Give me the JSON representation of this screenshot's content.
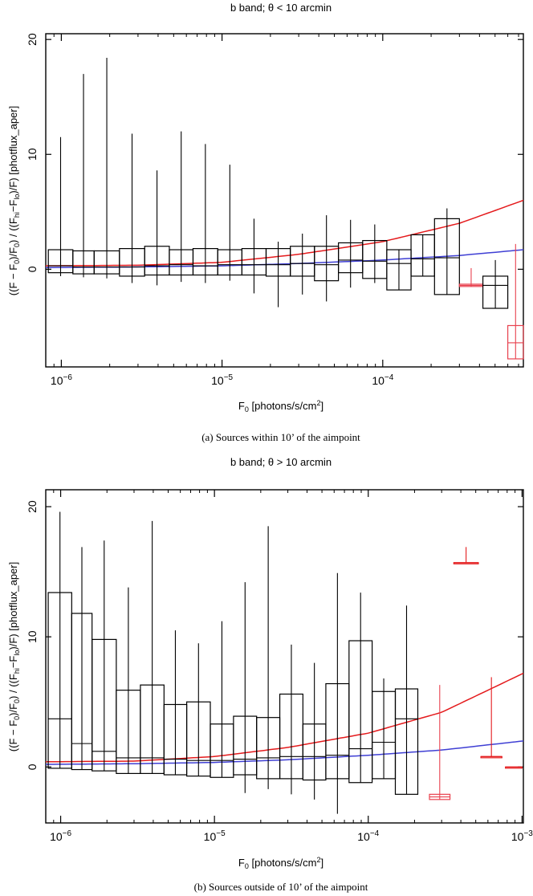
{
  "chart_data": [
    {
      "type": "boxplot",
      "title": "b band;  θ < 10 arcmin",
      "caption": "(a)  Sources within 10’ of the aimpoint",
      "xlabel_parts": [
        "F",
        "0",
        " [photons/s/cm",
        "2",
        "]"
      ],
      "ylabel_parts": [
        "((F − F",
        "0",
        ")/F",
        "0",
        ") / ((F",
        "hi",
        "−F",
        "lo",
        ")/F)  [photflux_aper]"
      ],
      "x_scale": "log",
      "x_ticks": [
        {
          "value": 1e-06,
          "label_base": "10",
          "label_exp": "−6"
        },
        {
          "value": 1e-05,
          "label_base": "10",
          "label_exp": "−5"
        },
        {
          "value": 0.0001,
          "label_base": "10",
          "label_exp": "−4"
        }
      ],
      "xlim": [
        8e-07,
        0.00075
      ],
      "y_ticks": [
        0,
        10,
        20
      ],
      "ylim": [
        -8.5,
        20.5
      ],
      "boxes": [
        {
          "x_lo": 8.3e-07,
          "x_hi": 1.18e-06,
          "q1": -0.3,
          "median": 0.3,
          "q3": 1.7,
          "whisker_lo": -0.6,
          "whisker_hi": 11.5,
          "color": "#000000"
        },
        {
          "x_lo": 1.18e-06,
          "x_hi": 1.6e-06,
          "q1": -0.4,
          "median": 0.2,
          "q3": 1.6,
          "whisker_lo": -0.7,
          "whisker_hi": 17.0,
          "color": "#000000"
        },
        {
          "x_lo": 1.6e-06,
          "x_hi": 2.3e-06,
          "q1": -0.4,
          "median": 0.2,
          "q3": 1.6,
          "whisker_lo": -0.8,
          "whisker_hi": 18.4,
          "color": "#000000"
        },
        {
          "x_lo": 2.3e-06,
          "x_hi": 3.3e-06,
          "q1": -0.6,
          "median": 0.2,
          "q3": 1.8,
          "whisker_lo": -1.2,
          "whisker_hi": 11.8,
          "color": "#000000"
        },
        {
          "x_lo": 3.3e-06,
          "x_hi": 4.7e-06,
          "q1": -0.5,
          "median": 0.3,
          "q3": 2.0,
          "whisker_lo": -1.4,
          "whisker_hi": 8.6,
          "color": "#000000"
        },
        {
          "x_lo": 4.7e-06,
          "x_hi": 6.6e-06,
          "q1": -0.5,
          "median": 0.4,
          "q3": 1.7,
          "whisker_lo": -1.1,
          "whisker_hi": 12.0,
          "color": "#000000"
        },
        {
          "x_lo": 6.6e-06,
          "x_hi": 9.4e-06,
          "q1": -0.5,
          "median": 0.3,
          "q3": 1.8,
          "whisker_lo": -1.2,
          "whisker_hi": 10.9,
          "color": "#000000"
        },
        {
          "x_lo": 9.4e-06,
          "x_hi": 1.33e-05,
          "q1": -0.5,
          "median": 0.4,
          "q3": 1.7,
          "whisker_lo": -1.0,
          "whisker_hi": 9.1,
          "color": "#000000"
        },
        {
          "x_lo": 1.33e-05,
          "x_hi": 1.88e-05,
          "q1": -0.5,
          "median": 0.4,
          "q3": 1.8,
          "whisker_lo": -2.1,
          "whisker_hi": 4.4,
          "color": "#000000"
        },
        {
          "x_lo": 1.88e-05,
          "x_hi": 2.66e-05,
          "q1": -0.6,
          "median": 0.4,
          "q3": 1.8,
          "whisker_lo": -3.3,
          "whisker_hi": 2.4,
          "color": "#000000"
        },
        {
          "x_lo": 2.66e-05,
          "x_hi": 3.76e-05,
          "q1": -0.6,
          "median": 0.5,
          "q3": 2.0,
          "whisker_lo": -2.2,
          "whisker_hi": 3.1,
          "color": "#000000"
        },
        {
          "x_lo": 3.76e-05,
          "x_hi": 5.3e-05,
          "q1": -1.0,
          "median": 0.4,
          "q3": 2.0,
          "whisker_lo": -2.8,
          "whisker_hi": 4.7,
          "color": "#000000"
        },
        {
          "x_lo": 5.3e-05,
          "x_hi": 7.5e-05,
          "q1": -0.3,
          "median": 0.8,
          "q3": 2.3,
          "whisker_lo": -1.6,
          "whisker_hi": 4.3,
          "color": "#000000"
        },
        {
          "x_lo": 7.5e-05,
          "x_hi": 0.000106,
          "q1": -0.8,
          "median": 0.7,
          "q3": 2.5,
          "whisker_lo": -1.2,
          "whisker_hi": 3.9,
          "color": "#000000"
        },
        {
          "x_lo": 0.000106,
          "x_hi": 0.00015,
          "q1": -1.8,
          "median": 0.5,
          "q3": 1.7,
          "whisker_lo": -1.8,
          "whisker_hi": 1.7,
          "color": "#000000"
        },
        {
          "x_lo": 0.00015,
          "x_hi": 0.00021,
          "q1": -0.6,
          "median": 0.9,
          "q3": 3.0,
          "whisker_lo": -0.6,
          "whisker_hi": 3.0,
          "color": "#000000"
        },
        {
          "x_lo": 0.00021,
          "x_hi": 0.0003,
          "q1": -2.2,
          "median": 1.0,
          "q3": 4.4,
          "whisker_lo": -2.2,
          "whisker_hi": 5.3,
          "color": "#000000"
        },
        {
          "x_lo": 0.0003,
          "x_hi": 0.00042,
          "q1": -1.5,
          "median": -1.4,
          "q3": -1.3,
          "whisker_lo": -1.5,
          "whisker_hi": 0.1,
          "color": "#e8414e"
        },
        {
          "x_lo": 0.00042,
          "x_hi": 0.0006,
          "q1": -3.4,
          "median": -1.4,
          "q3": -0.6,
          "whisker_lo": -3.4,
          "whisker_hi": 0.8,
          "color": "#000000"
        },
        {
          "x_lo": 0.0006,
          "x_hi": 0.00075,
          "q1": -7.8,
          "median": -6.4,
          "q3": -4.9,
          "whisker_lo": -7.8,
          "whisker_hi": 2.2,
          "color": "#e8414e"
        }
      ],
      "series": [
        {
          "color": "#e41a1c",
          "x": [
            8e-07,
            3e-06,
            1e-05,
            3e-05,
            0.0001,
            0.0003,
            0.00075
          ],
          "y": [
            0.3,
            0.35,
            0.6,
            1.3,
            2.4,
            4.0,
            6.0
          ]
        },
        {
          "color": "#3f3fd4",
          "x": [
            8e-07,
            3e-06,
            1e-05,
            3e-05,
            0.0001,
            0.0003,
            0.00075
          ],
          "y": [
            0.15,
            0.2,
            0.3,
            0.5,
            0.8,
            1.2,
            1.7
          ]
        }
      ]
    },
    {
      "type": "boxplot",
      "title": "b band;  θ > 10 arcmin",
      "caption": "(b)  Sources outside of 10’ of the aimpoint",
      "xlabel_parts": [
        "F",
        "0",
        " [photons/s/cm",
        "2",
        "]"
      ],
      "ylabel_parts": [
        "((F − F",
        "0",
        ")/F",
        "0",
        ") / ((F",
        "hi",
        "−F",
        "lo",
        ")/F)  [photflux_aper]"
      ],
      "x_scale": "log",
      "x_ticks": [
        {
          "value": 1e-06,
          "label_base": "10",
          "label_exp": "−6"
        },
        {
          "value": 1e-05,
          "label_base": "10",
          "label_exp": "−5"
        },
        {
          "value": 0.0001,
          "label_base": "10",
          "label_exp": "−4"
        },
        {
          "value": 0.001,
          "label_base": "10",
          "label_exp": "−3"
        }
      ],
      "xlim": [
        8e-07,
        0.00102
      ],
      "y_ticks": [
        0,
        10,
        20
      ],
      "ylim": [
        -4.3,
        21.3
      ],
      "boxes": [
        {
          "x_lo": 8.3e-07,
          "x_hi": 1.18e-06,
          "q1": -0.1,
          "median": 3.7,
          "q3": 13.4,
          "whisker_lo": -0.1,
          "whisker_hi": 19.6,
          "color": "#000000"
        },
        {
          "x_lo": 1.18e-06,
          "x_hi": 1.6e-06,
          "q1": -0.2,
          "median": 1.8,
          "q3": 11.8,
          "whisker_lo": -0.2,
          "whisker_hi": 16.9,
          "color": "#000000"
        },
        {
          "x_lo": 1.6e-06,
          "x_hi": 2.3e-06,
          "q1": -0.3,
          "median": 1.2,
          "q3": 9.8,
          "whisker_lo": -0.3,
          "whisker_hi": 17.4,
          "color": "#000000"
        },
        {
          "x_lo": 2.3e-06,
          "x_hi": 3.3e-06,
          "q1": -0.5,
          "median": 0.7,
          "q3": 5.9,
          "whisker_lo": -0.5,
          "whisker_hi": 13.8,
          "color": "#000000"
        },
        {
          "x_lo": 3.3e-06,
          "x_hi": 4.7e-06,
          "q1": -0.5,
          "median": 0.7,
          "q3": 6.3,
          "whisker_lo": -0.5,
          "whisker_hi": 18.9,
          "color": "#000000"
        },
        {
          "x_lo": 4.7e-06,
          "x_hi": 6.6e-06,
          "q1": -0.6,
          "median": 0.6,
          "q3": 4.8,
          "whisker_lo": -0.6,
          "whisker_hi": 10.5,
          "color": "#000000"
        },
        {
          "x_lo": 6.6e-06,
          "x_hi": 9.4e-06,
          "q1": -0.7,
          "median": 0.5,
          "q3": 5.0,
          "whisker_lo": -0.7,
          "whisker_hi": 9.5,
          "color": "#000000"
        },
        {
          "x_lo": 9.4e-06,
          "x_hi": 1.33e-05,
          "q1": -0.8,
          "median": 0.5,
          "q3": 3.3,
          "whisker_lo": -0.8,
          "whisker_hi": 11.2,
          "color": "#000000"
        },
        {
          "x_lo": 1.33e-05,
          "x_hi": 1.88e-05,
          "q1": -0.6,
          "median": 0.6,
          "q3": 3.9,
          "whisker_lo": -2.0,
          "whisker_hi": 14.2,
          "color": "#000000"
        },
        {
          "x_lo": 1.88e-05,
          "x_hi": 2.66e-05,
          "q1": -0.9,
          "median": 0.7,
          "q3": 3.8,
          "whisker_lo": -1.7,
          "whisker_hi": 18.5,
          "color": "#000000"
        },
        {
          "x_lo": 2.66e-05,
          "x_hi": 3.76e-05,
          "q1": -0.9,
          "median": 0.8,
          "q3": 5.6,
          "whisker_lo": -2.1,
          "whisker_hi": 9.4,
          "color": "#000000"
        },
        {
          "x_lo": 3.76e-05,
          "x_hi": 5.3e-05,
          "q1": -1.0,
          "median": 0.8,
          "q3": 3.3,
          "whisker_lo": -2.5,
          "whisker_hi": 8.0,
          "color": "#000000"
        },
        {
          "x_lo": 5.3e-05,
          "x_hi": 7.5e-05,
          "q1": -0.9,
          "median": 0.9,
          "q3": 6.4,
          "whisker_lo": -3.6,
          "whisker_hi": 14.9,
          "color": "#000000"
        },
        {
          "x_lo": 7.5e-05,
          "x_hi": 0.000106,
          "q1": -1.2,
          "median": 1.4,
          "q3": 9.7,
          "whisker_lo": -1.2,
          "whisker_hi": 13.4,
          "color": "#000000"
        },
        {
          "x_lo": 0.000106,
          "x_hi": 0.00015,
          "q1": -0.9,
          "median": 1.9,
          "q3": 5.8,
          "whisker_lo": -0.9,
          "whisker_hi": 6.8,
          "color": "#000000"
        },
        {
          "x_lo": 0.00015,
          "x_hi": 0.00021,
          "q1": -2.1,
          "median": 3.7,
          "q3": 6.0,
          "whisker_lo": -2.1,
          "whisker_hi": 12.4,
          "color": "#000000"
        },
        {
          "x_lo": 0.00025,
          "x_hi": 0.00034,
          "q1": -2.5,
          "median": -2.3,
          "q3": -2.1,
          "whisker_lo": -2.5,
          "whisker_hi": 6.3,
          "color": "#e8414e"
        },
        {
          "x_lo": 0.00036,
          "x_hi": 0.00052,
          "q1": 15.7,
          "median": 15.7,
          "q3": 15.7,
          "whisker_lo": 15.7,
          "whisker_hi": 16.9,
          "color": "#e41a1c"
        },
        {
          "x_lo": 0.00054,
          "x_hi": 0.00074,
          "q1": 0.8,
          "median": 0.8,
          "q3": 0.8,
          "whisker_lo": 0.8,
          "whisker_hi": 6.9,
          "color": "#e41a1c"
        },
        {
          "x_lo": 0.00078,
          "x_hi": 0.001,
          "q1": 0.0,
          "median": 0.0,
          "q3": 0.0,
          "whisker_lo": 0.0,
          "whisker_hi": 0.0,
          "color": "#e41a1c"
        }
      ],
      "series": [
        {
          "color": "#e41a1c",
          "x": [
            8e-07,
            3e-06,
            1e-05,
            3e-05,
            0.0001,
            0.0003,
            0.00102
          ],
          "y": [
            0.4,
            0.45,
            0.8,
            1.5,
            2.6,
            4.2,
            7.2
          ]
        },
        {
          "color": "#3f3fd4",
          "x": [
            8e-07,
            3e-06,
            1e-05,
            3e-05,
            0.0001,
            0.0003,
            0.00102
          ],
          "y": [
            0.2,
            0.25,
            0.35,
            0.55,
            0.9,
            1.3,
            2.0
          ]
        }
      ]
    }
  ]
}
